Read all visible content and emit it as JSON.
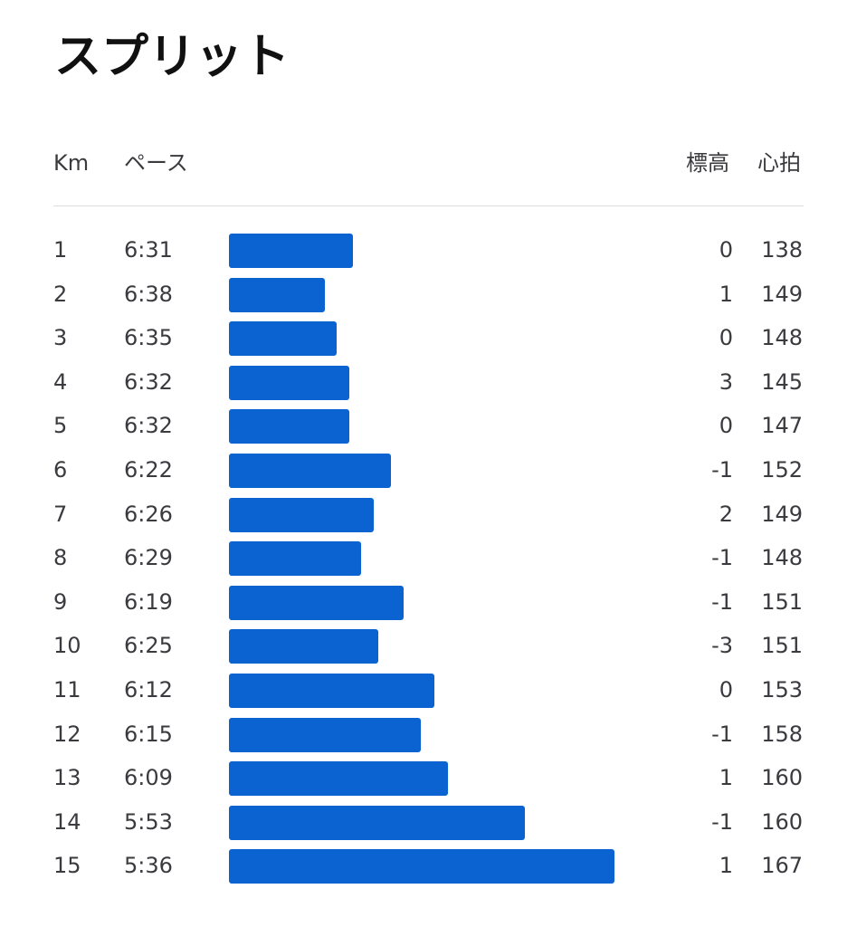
{
  "title": "スプリット",
  "header": {
    "km": "Km",
    "pace": "ペース",
    "elevation": "標高",
    "heart_rate": "心拍"
  },
  "bar_color": "#0a63d1",
  "rows": [
    {
      "km": "1",
      "pace": "6:31",
      "pace_seconds": 391,
      "elevation": "0",
      "heart_rate": "138"
    },
    {
      "km": "2",
      "pace": "6:38",
      "pace_seconds": 398,
      "elevation": "1",
      "heart_rate": "149"
    },
    {
      "km": "3",
      "pace": "6:35",
      "pace_seconds": 395,
      "elevation": "0",
      "heart_rate": "148"
    },
    {
      "km": "4",
      "pace": "6:32",
      "pace_seconds": 392,
      "elevation": "3",
      "heart_rate": "145"
    },
    {
      "km": "5",
      "pace": "6:32",
      "pace_seconds": 392,
      "elevation": "0",
      "heart_rate": "147"
    },
    {
      "km": "6",
      "pace": "6:22",
      "pace_seconds": 382,
      "elevation": "-1",
      "heart_rate": "152"
    },
    {
      "km": "7",
      "pace": "6:26",
      "pace_seconds": 386,
      "elevation": "2",
      "heart_rate": "149"
    },
    {
      "km": "8",
      "pace": "6:29",
      "pace_seconds": 389,
      "elevation": "-1",
      "heart_rate": "148"
    },
    {
      "km": "9",
      "pace": "6:19",
      "pace_seconds": 379,
      "elevation": "-1",
      "heart_rate": "151"
    },
    {
      "km": "10",
      "pace": "6:25",
      "pace_seconds": 385,
      "elevation": "-3",
      "heart_rate": "151"
    },
    {
      "km": "11",
      "pace": "6:12",
      "pace_seconds": 372,
      "elevation": "0",
      "heart_rate": "153"
    },
    {
      "km": "12",
      "pace": "6:15",
      "pace_seconds": 375,
      "elevation": "-1",
      "heart_rate": "158"
    },
    {
      "km": "13",
      "pace": "6:09",
      "pace_seconds": 369,
      "elevation": "1",
      "heart_rate": "160"
    },
    {
      "km": "14",
      "pace": "5:53",
      "pace_seconds": 353,
      "elevation": "-1",
      "heart_rate": "160"
    },
    {
      "km": "15",
      "pace": "5:36",
      "pace_seconds": 336,
      "elevation": "1",
      "heart_rate": "167"
    }
  ]
}
